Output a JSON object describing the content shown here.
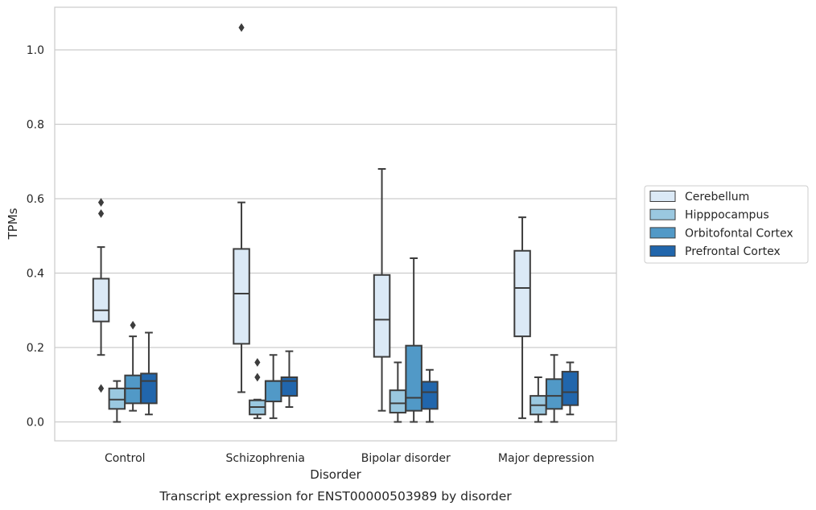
{
  "chart_data": {
    "type": "box",
    "xlabel": "Disorder",
    "ylabel": "TPMs",
    "caption": "Transcript expression for ENST00000503989 by disorder",
    "ylim": [
      -0.05,
      1.115
    ],
    "yticks": [
      0.0,
      0.2,
      0.4,
      0.6,
      0.8,
      1.0
    ],
    "ytick_labels": [
      "0.0",
      "0.2",
      "0.4",
      "0.6",
      "0.8",
      "1.0"
    ],
    "grid": "horizontal",
    "legend_position": "right",
    "categories": [
      "Control",
      "Schizophrenia",
      "Bipolar disorder",
      "Major depression"
    ],
    "series": [
      {
        "name": "Cerebellum",
        "color": "#dbe9f6",
        "boxes": [
          {
            "whisker_low": 0.18,
            "q1": 0.27,
            "median": 0.3,
            "q3": 0.385,
            "whisker_high": 0.47,
            "outliers": [
              0.59,
              0.56,
              0.09
            ]
          },
          {
            "whisker_low": 0.08,
            "q1": 0.21,
            "median": 0.345,
            "q3": 0.465,
            "whisker_high": 0.59,
            "outliers": [
              1.06
            ]
          },
          {
            "whisker_low": 0.03,
            "q1": 0.175,
            "median": 0.275,
            "q3": 0.395,
            "whisker_high": 0.68,
            "outliers": []
          },
          {
            "whisker_low": 0.01,
            "q1": 0.23,
            "median": 0.36,
            "q3": 0.46,
            "whisker_high": 0.55,
            "outliers": []
          }
        ]
      },
      {
        "name": "Hipppocampus",
        "color": "#9ac8e0",
        "boxes": [
          {
            "whisker_low": 0.0,
            "q1": 0.035,
            "median": 0.06,
            "q3": 0.09,
            "whisker_high": 0.11,
            "outliers": []
          },
          {
            "whisker_low": 0.01,
            "q1": 0.02,
            "median": 0.04,
            "q3": 0.058,
            "whisker_high": 0.06,
            "outliers": [
              0.16,
              0.12
            ]
          },
          {
            "whisker_low": 0.0,
            "q1": 0.025,
            "median": 0.05,
            "q3": 0.085,
            "whisker_high": 0.16,
            "outliers": []
          },
          {
            "whisker_low": 0.0,
            "q1": 0.02,
            "median": 0.045,
            "q3": 0.07,
            "whisker_high": 0.12,
            "outliers": []
          }
        ]
      },
      {
        "name": "Orbitofontal Cortex",
        "color": "#5199c7",
        "boxes": [
          {
            "whisker_low": 0.03,
            "q1": 0.05,
            "median": 0.09,
            "q3": 0.125,
            "whisker_high": 0.23,
            "outliers": [
              0.26
            ]
          },
          {
            "whisker_low": 0.01,
            "q1": 0.055,
            "median": 0.11,
            "q3": 0.11,
            "whisker_high": 0.18,
            "outliers": []
          },
          {
            "whisker_low": 0.0,
            "q1": 0.03,
            "median": 0.065,
            "q3": 0.205,
            "whisker_high": 0.44,
            "outliers": []
          },
          {
            "whisker_low": 0.0,
            "q1": 0.035,
            "median": 0.07,
            "q3": 0.115,
            "whisker_high": 0.18,
            "outliers": []
          }
        ]
      },
      {
        "name": "Prefrontal Cortex",
        "color": "#2166ac",
        "boxes": [
          {
            "whisker_low": 0.02,
            "q1": 0.05,
            "median": 0.11,
            "q3": 0.13,
            "whisker_high": 0.24,
            "outliers": []
          },
          {
            "whisker_low": 0.04,
            "q1": 0.07,
            "median": 0.11,
            "q3": 0.12,
            "whisker_high": 0.19,
            "outliers": []
          },
          {
            "whisker_low": 0.0,
            "q1": 0.035,
            "median": 0.08,
            "q3": 0.108,
            "whisker_high": 0.14,
            "outliers": []
          },
          {
            "whisker_low": 0.02,
            "q1": 0.045,
            "median": 0.08,
            "q3": 0.135,
            "whisker_high": 0.16,
            "outliers": []
          }
        ]
      }
    ]
  }
}
